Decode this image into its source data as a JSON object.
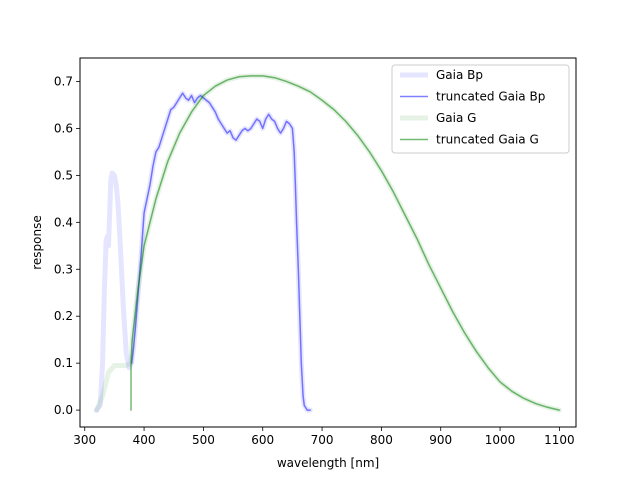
{
  "chart_data": {
    "type": "line",
    "title": "",
    "xlabel": "wavelength [nm]",
    "ylabel": "response",
    "xlim": [
      292,
      1128
    ],
    "ylim": [
      -0.036,
      0.75
    ],
    "xticks": [
      300,
      400,
      500,
      600,
      700,
      800,
      900,
      1000,
      1100
    ],
    "yticks": [
      0.0,
      0.1,
      0.2,
      0.3,
      0.4,
      0.5,
      0.6,
      0.7
    ],
    "grid": false,
    "legend_position": "top-right",
    "series": [
      {
        "name": "Gaia Bp",
        "color": "#0000ff",
        "alpha": 0.1,
        "style": "thick",
        "x": [
          320,
          326,
          330,
          333,
          336,
          338,
          340,
          342,
          344,
          346,
          350,
          353,
          356,
          360,
          365,
          370,
          375,
          379,
          382,
          385,
          390,
          395,
          400,
          405,
          410,
          415,
          420,
          425,
          430,
          435,
          440,
          445,
          450,
          455,
          460,
          465,
          470,
          475,
          480,
          485,
          490,
          495,
          500,
          505,
          510,
          515,
          520,
          525,
          530,
          535,
          540,
          545,
          550,
          555,
          560,
          565,
          570,
          575,
          580,
          585,
          590,
          595,
          600,
          605,
          610,
          615,
          620,
          625,
          630,
          635,
          640,
          645,
          650,
          653,
          655,
          657,
          660,
          663,
          665,
          668,
          670,
          675,
          680
        ],
        "y": [
          0.0,
          0.01,
          0.1,
          0.25,
          0.36,
          0.37,
          0.35,
          0.42,
          0.49,
          0.505,
          0.5,
          0.48,
          0.44,
          0.35,
          0.22,
          0.12,
          0.09,
          0.1,
          0.13,
          0.17,
          0.25,
          0.33,
          0.42,
          0.45,
          0.48,
          0.52,
          0.55,
          0.56,
          0.58,
          0.6,
          0.62,
          0.64,
          0.645,
          0.655,
          0.665,
          0.675,
          0.665,
          0.66,
          0.67,
          0.655,
          0.665,
          0.67,
          0.665,
          0.66,
          0.655,
          0.645,
          0.635,
          0.62,
          0.61,
          0.6,
          0.59,
          0.595,
          0.58,
          0.575,
          0.585,
          0.595,
          0.6,
          0.595,
          0.6,
          0.61,
          0.62,
          0.615,
          0.6,
          0.62,
          0.63,
          0.62,
          0.615,
          0.6,
          0.59,
          0.6,
          0.615,
          0.61,
          0.6,
          0.55,
          0.48,
          0.4,
          0.3,
          0.18,
          0.1,
          0.03,
          0.01,
          0.0,
          0.0
        ]
      },
      {
        "name": "truncated Gaia Bp",
        "color": "#0000ff",
        "alpha": 0.5,
        "style": "thin",
        "x": [
          379,
          382,
          385,
          390,
          395,
          400,
          405,
          410,
          415,
          420,
          425,
          430,
          435,
          440,
          445,
          450,
          455,
          460,
          465,
          470,
          475,
          480,
          485,
          490,
          495,
          500,
          505,
          510,
          515,
          520,
          525,
          530,
          535,
          540,
          545,
          550,
          555,
          560,
          565,
          570,
          575,
          580,
          585,
          590,
          595,
          600,
          605,
          610,
          615,
          620,
          625,
          630,
          635,
          640,
          645,
          650,
          653,
          655,
          657,
          660,
          663,
          665,
          668,
          670,
          675,
          680
        ],
        "y": [
          0.1,
          0.13,
          0.17,
          0.25,
          0.33,
          0.42,
          0.45,
          0.48,
          0.52,
          0.55,
          0.56,
          0.58,
          0.6,
          0.62,
          0.64,
          0.645,
          0.655,
          0.665,
          0.675,
          0.665,
          0.66,
          0.67,
          0.655,
          0.665,
          0.67,
          0.665,
          0.66,
          0.655,
          0.645,
          0.635,
          0.62,
          0.61,
          0.6,
          0.59,
          0.595,
          0.58,
          0.575,
          0.585,
          0.595,
          0.6,
          0.595,
          0.6,
          0.61,
          0.62,
          0.615,
          0.6,
          0.62,
          0.63,
          0.62,
          0.615,
          0.6,
          0.59,
          0.6,
          0.615,
          0.61,
          0.6,
          0.55,
          0.48,
          0.4,
          0.3,
          0.18,
          0.1,
          0.03,
          0.01,
          0.0,
          0.0
        ]
      },
      {
        "name": "Gaia G",
        "color": "#008000",
        "alpha": 0.1,
        "style": "thick",
        "x": [
          320,
          330,
          340,
          350,
          360,
          370,
          378,
          380,
          390,
          400,
          420,
          440,
          460,
          480,
          500,
          520,
          540,
          560,
          580,
          600,
          620,
          640,
          660,
          680,
          700,
          720,
          740,
          760,
          780,
          800,
          820,
          840,
          860,
          880,
          900,
          920,
          940,
          960,
          980,
          1000,
          1020,
          1040,
          1060,
          1080,
          1100
        ],
        "y": [
          0.0,
          0.03,
          0.08,
          0.095,
          0.095,
          0.095,
          0.1,
          0.15,
          0.26,
          0.35,
          0.45,
          0.53,
          0.59,
          0.635,
          0.67,
          0.69,
          0.703,
          0.71,
          0.712,
          0.712,
          0.708,
          0.7,
          0.69,
          0.678,
          0.66,
          0.64,
          0.615,
          0.585,
          0.55,
          0.51,
          0.465,
          0.415,
          0.365,
          0.31,
          0.26,
          0.21,
          0.165,
          0.125,
          0.09,
          0.06,
          0.04,
          0.025,
          0.014,
          0.006,
          0.0
        ]
      },
      {
        "name": "truncated Gaia G",
        "color": "#008000",
        "alpha": 0.55,
        "style": "thin",
        "x": [
          378,
          378,
          380,
          390,
          400,
          420,
          440,
          460,
          480,
          500,
          520,
          540,
          560,
          580,
          600,
          620,
          640,
          660,
          680,
          700,
          720,
          740,
          760,
          780,
          800,
          820,
          840,
          860,
          880,
          900,
          920,
          940,
          960,
          980,
          1000,
          1020,
          1040,
          1060,
          1080,
          1100
        ],
        "y": [
          0.0,
          0.1,
          0.15,
          0.26,
          0.35,
          0.45,
          0.53,
          0.59,
          0.635,
          0.67,
          0.69,
          0.703,
          0.71,
          0.712,
          0.712,
          0.708,
          0.7,
          0.69,
          0.678,
          0.66,
          0.64,
          0.615,
          0.585,
          0.55,
          0.51,
          0.465,
          0.415,
          0.365,
          0.31,
          0.26,
          0.21,
          0.165,
          0.125,
          0.09,
          0.06,
          0.04,
          0.025,
          0.014,
          0.006,
          0.0
        ]
      }
    ]
  }
}
